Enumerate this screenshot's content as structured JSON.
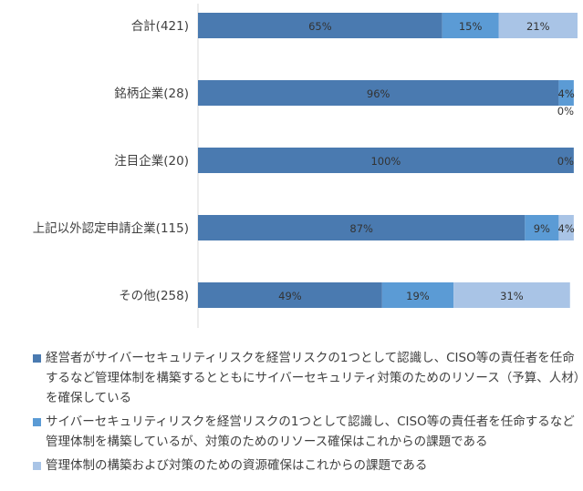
{
  "chart_data": {
    "type": "bar",
    "orientation": "horizontal",
    "stacked": true,
    "categories": [
      "合計(421)",
      "銘柄企業(28)",
      "注目企業(20)",
      "上記以外認定申請企業(115)",
      "その他(258)"
    ],
    "series": [
      {
        "name": "経営者がサイバーセキュリティリスクを経営リスクの1つとして認識し、CISO等の責任者を任命するなど管理体制を構築するとともにサイバーセキュリティ対策のためのリソース（予算、人材）を確保している",
        "color": "#4a7ab0",
        "values": [
          65,
          96,
          100,
          87,
          49
        ],
        "labels": [
          "65%",
          "96%",
          "100%",
          "87%",
          "49%"
        ]
      },
      {
        "name": "サイバーセキュリティリスクを経営リスクの1つとして認識し、CISO等の責任者を任命するなど管理体制を構築しているが、対策のためのリソース確保はこれからの課題である",
        "color": "#5b9bd5",
        "values": [
          15,
          4,
          0,
          9,
          19
        ],
        "labels": [
          "15%",
          "4%",
          "0%",
          "9%",
          "19%"
        ]
      },
      {
        "name": "管理体制の構築および対策のための資源確保はこれからの課題である",
        "color": "#a9c4e6",
        "values": [
          21,
          0,
          0,
          4,
          31
        ],
        "labels": [
          "21%",
          "0%",
          "0%",
          "4%",
          "31%"
        ]
      }
    ],
    "xlim": [
      0,
      101
    ],
    "legend_position": "bottom",
    "grid": false
  }
}
